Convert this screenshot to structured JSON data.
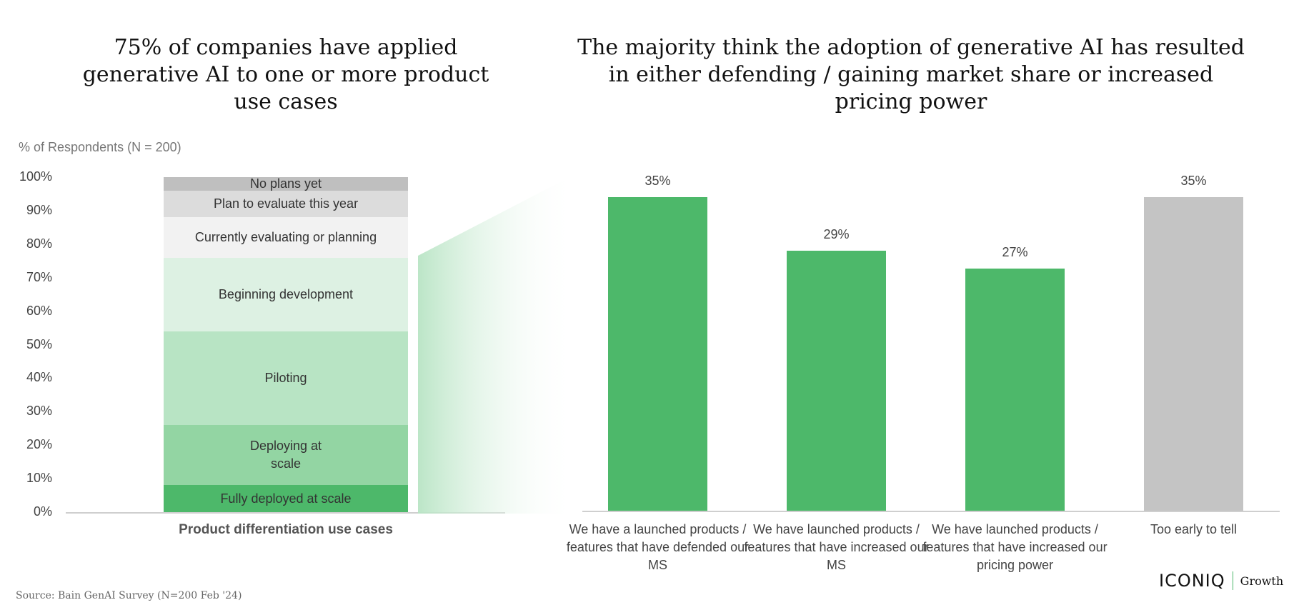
{
  "titles": {
    "left": "75% of companies have applied generative AI to one or more product use cases",
    "right": "The majority think the adoption of generative AI has resulted in either defending / gaining market share or increased pricing power"
  },
  "colors": {
    "green_dark": "#4db86a",
    "green_mid": "#93d5a3",
    "green_light": "#b8e4c4",
    "green_pale": "#ddf1e3",
    "grey_pale": "#f2f2f2",
    "grey_light": "#dcdcdc",
    "grey_mid": "#bfbfbf",
    "bar_grey": "#c4c4c4"
  },
  "chart_data": [
    {
      "type": "bar",
      "stacked": true,
      "title": "75% of companies have applied generative AI to one or more product use cases",
      "ylabel": "% of Respondents (N = 200)",
      "xlabel": "Product differentiation use cases",
      "ylim": [
        0,
        100
      ],
      "yticks": [
        "0%",
        "10%",
        "20%",
        "30%",
        "40%",
        "50%",
        "60%",
        "70%",
        "80%",
        "90%",
        "100%"
      ],
      "categories": [
        "Product differentiation use cases"
      ],
      "series": [
        {
          "name": "Fully deployed at scale",
          "values": [
            8
          ],
          "color": "#4db86a"
        },
        {
          "name": "Deploying at scale",
          "display": "Deploying at\nscale",
          "values": [
            18
          ],
          "color": "#93d5a3"
        },
        {
          "name": "Piloting",
          "values": [
            28
          ],
          "color": "#b8e4c4"
        },
        {
          "name": "Beginning development",
          "values": [
            22
          ],
          "color": "#ddf1e3"
        },
        {
          "name": "Currently evaluating or planning",
          "values": [
            12
          ],
          "color": "#f2f2f2"
        },
        {
          "name": "Plan to evaluate this year",
          "values": [
            8
          ],
          "color": "#dcdcdc"
        },
        {
          "name": "No plans yet",
          "values": [
            4
          ],
          "color": "#bfbfbf"
        }
      ]
    },
    {
      "type": "bar",
      "title": "The majority think the adoption of generative AI has resulted in either defending / gaining market share or increased pricing power",
      "ylim": [
        0,
        35
      ],
      "categories": [
        "We have a launched products / features that have defended our MS",
        "We have launched products / features that have increased our MS",
        "We have launched products / features that have increased our pricing power",
        "Too early to tell"
      ],
      "values": [
        35,
        29,
        27,
        35
      ],
      "value_labels": [
        "35%",
        "29%",
        "27%",
        "35%"
      ],
      "colors": [
        "#4db86a",
        "#4db86a",
        "#4db86a",
        "#c4c4c4"
      ]
    }
  ],
  "source": "Source: Bain GenAI Survey (N=200 Feb '24)",
  "logo": {
    "main": "ICONIQ",
    "sub": "Growth"
  }
}
